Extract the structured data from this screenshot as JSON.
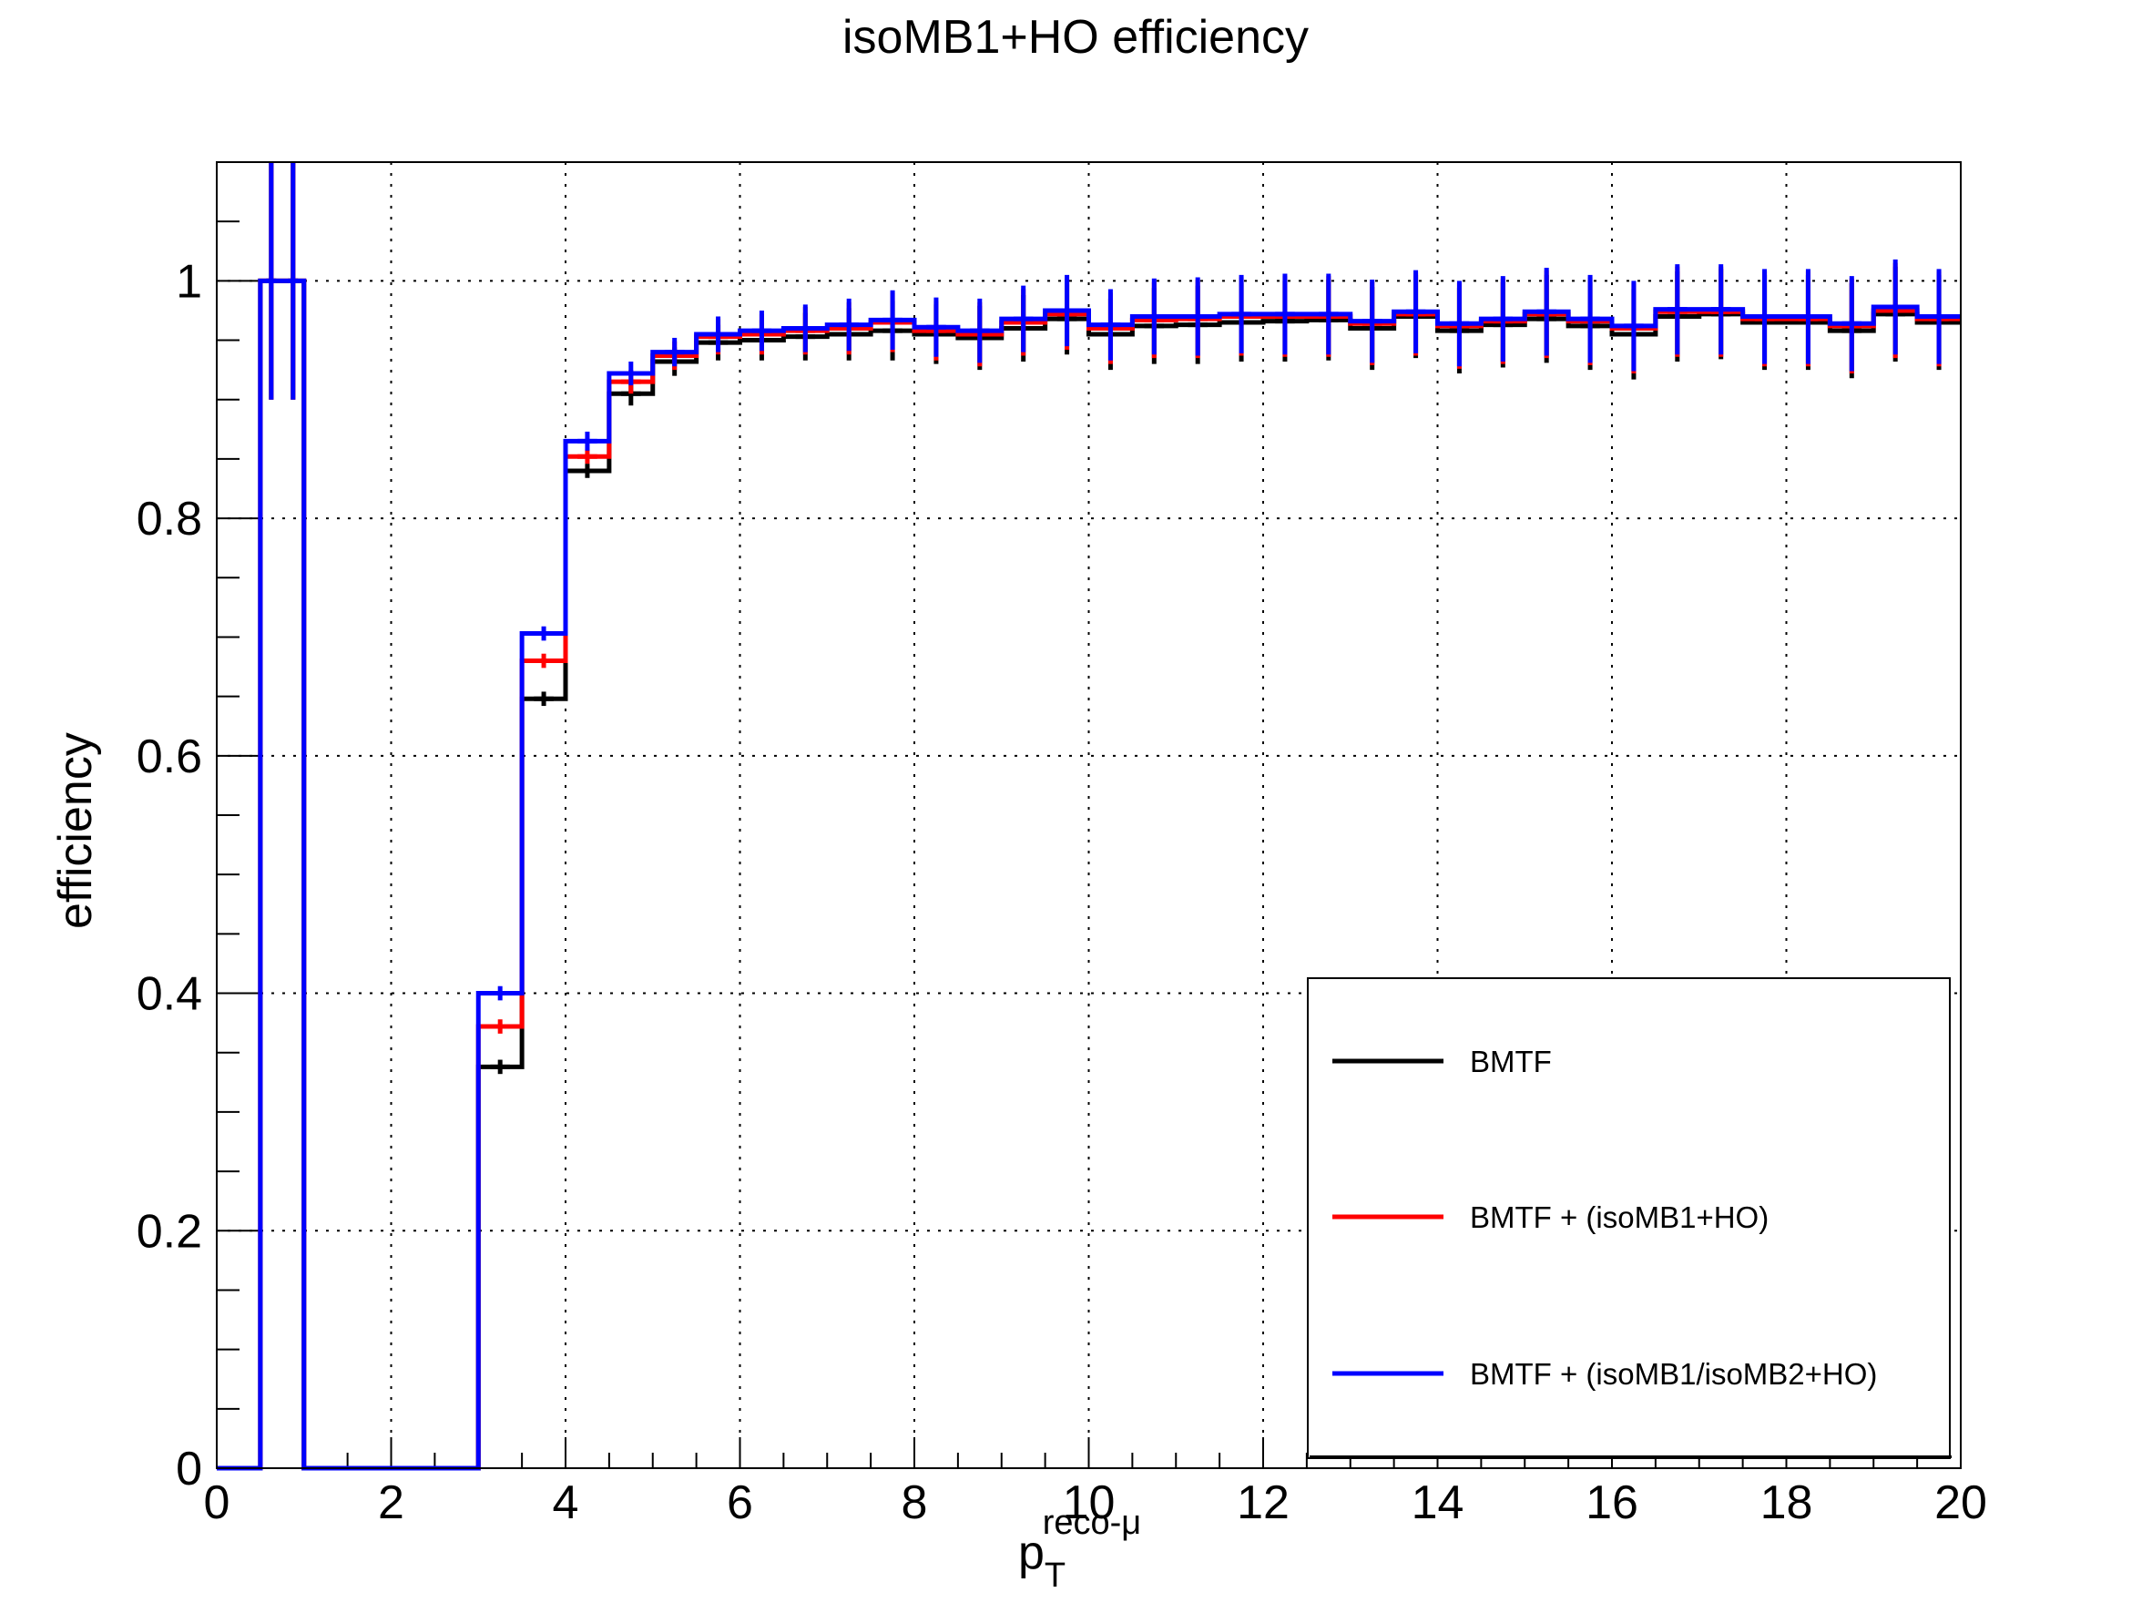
{
  "chart_data": {
    "type": "step",
    "title": "isoMB1+HO efficiency",
    "xlabel_main": "p",
    "xlabel_sub": "T",
    "xlabel_sup": "reco-μ",
    "ylabel": "efficiency",
    "xlim": [
      0,
      20
    ],
    "ylim": [
      0,
      1.1
    ],
    "x_ticks": [
      "0",
      "2",
      "4",
      "6",
      "8",
      "10",
      "12",
      "14",
      "16",
      "18",
      "20"
    ],
    "y_ticks": [
      "0",
      "0.2",
      "0.4",
      "0.6",
      "0.8",
      "1"
    ],
    "grid": true,
    "legend_position": "bottom-right",
    "bin_edges": [
      0,
      0.5,
      0.75,
      1,
      1.5,
      2,
      2.5,
      3,
      3.5,
      4,
      4.5,
      5,
      5.5,
      6,
      6.5,
      7,
      7.5,
      8,
      8.5,
      9,
      9.5,
      10,
      10.5,
      11,
      11.5,
      12,
      12.5,
      13,
      13.5,
      14,
      14.5,
      15,
      15.5,
      16,
      16.5,
      17,
      17.5,
      18,
      18.5,
      19,
      19.5,
      20
    ],
    "series": [
      {
        "name": "BMTF",
        "color": "#000000",
        "values": [
          0,
          1,
          1,
          0,
          0,
          0,
          0,
          0.338,
          0.648,
          0.84,
          0.905,
          0.932,
          0.948,
          0.95,
          0.953,
          0.955,
          0.958,
          0.955,
          0.952,
          0.96,
          0.968,
          0.955,
          0.962,
          0.963,
          0.965,
          0.966,
          0.967,
          0.96,
          0.97,
          0.958,
          0.963,
          0.968,
          0.962,
          0.955,
          0.97,
          0.972,
          0.965,
          0.965,
          0.958,
          0.972,
          0.965
        ],
        "errors": [
          0,
          0.1,
          0.1,
          0,
          0,
          0,
          0,
          0.006,
          0.006,
          0.006,
          0.01,
          0.012,
          0.015,
          0.017,
          0.02,
          0.022,
          0.025,
          0.025,
          0.027,
          0.028,
          0.03,
          0.03,
          0.032,
          0.033,
          0.033,
          0.034,
          0.034,
          0.035,
          0.035,
          0.036,
          0.036,
          0.037,
          0.037,
          0.038,
          0.038,
          0.038,
          0.04,
          0.04,
          0.04,
          0.04,
          0.04
        ]
      },
      {
        "name": "BMTF + (isoMB1+HO)",
        "color": "#ff0000",
        "values": [
          0,
          1,
          1,
          0,
          0,
          0,
          0,
          0.372,
          0.68,
          0.852,
          0.915,
          0.937,
          0.953,
          0.955,
          0.958,
          0.96,
          0.965,
          0.958,
          0.955,
          0.965,
          0.972,
          0.96,
          0.967,
          0.968,
          0.97,
          0.97,
          0.97,
          0.964,
          0.972,
          0.962,
          0.966,
          0.972,
          0.966,
          0.96,
          0.974,
          0.974,
          0.968,
          0.968,
          0.962,
          0.975,
          0.968
        ],
        "errors": [
          0,
          0.1,
          0.1,
          0,
          0,
          0,
          0,
          0.006,
          0.006,
          0.006,
          0.01,
          0.012,
          0.015,
          0.017,
          0.02,
          0.022,
          0.025,
          0.025,
          0.027,
          0.028,
          0.03,
          0.03,
          0.032,
          0.033,
          0.033,
          0.034,
          0.034,
          0.035,
          0.035,
          0.036,
          0.036,
          0.037,
          0.037,
          0.038,
          0.038,
          0.038,
          0.04,
          0.04,
          0.04,
          0.04,
          0.04
        ]
      },
      {
        "name": "BMTF + (isoMB1/isoMB2+HO)",
        "color": "#0000ff",
        "values": [
          0,
          1,
          1,
          0,
          0,
          0,
          0,
          0.4,
          0.703,
          0.865,
          0.922,
          0.94,
          0.955,
          0.958,
          0.96,
          0.963,
          0.967,
          0.961,
          0.958,
          0.968,
          0.975,
          0.963,
          0.97,
          0.97,
          0.972,
          0.972,
          0.972,
          0.966,
          0.974,
          0.964,
          0.968,
          0.974,
          0.968,
          0.962,
          0.976,
          0.976,
          0.97,
          0.97,
          0.964,
          0.978,
          0.97
        ],
        "errors": [
          0,
          0.1,
          0.1,
          0,
          0,
          0,
          0,
          0.006,
          0.006,
          0.008,
          0.01,
          0.012,
          0.015,
          0.017,
          0.02,
          0.022,
          0.025,
          0.025,
          0.027,
          0.028,
          0.03,
          0.03,
          0.032,
          0.033,
          0.033,
          0.034,
          0.034,
          0.035,
          0.035,
          0.036,
          0.036,
          0.037,
          0.037,
          0.038,
          0.038,
          0.038,
          0.04,
          0.04,
          0.04,
          0.04,
          0.04
        ]
      }
    ]
  }
}
